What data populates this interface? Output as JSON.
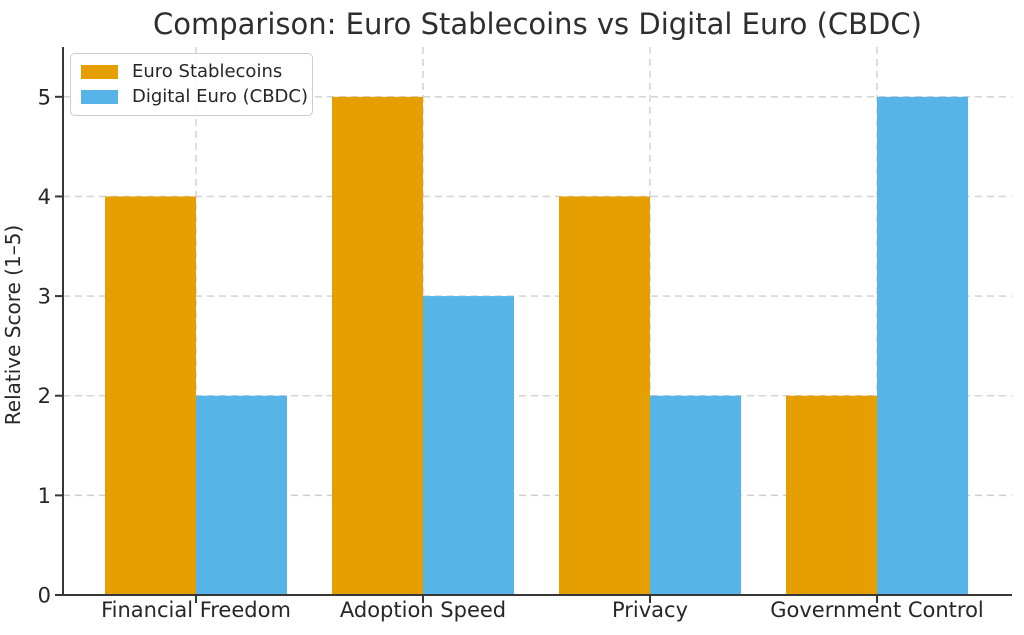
{
  "chart_data": {
    "type": "bar",
    "title": "Comparison: Euro Stablecoins vs Digital Euro (CBDC)",
    "xlabel": "",
    "ylabel": "Relative Score (1–5)",
    "categories": [
      "Financial Freedom",
      "Adoption Speed",
      "Privacy",
      "Government Control"
    ],
    "series": [
      {
        "name": "Euro Stablecoins",
        "color": "#E69F00",
        "values": [
          4,
          5,
          4,
          2
        ]
      },
      {
        "name": "Digital Euro (CBDC)",
        "color": "#56B4E9",
        "values": [
          2,
          3,
          2,
          5
        ]
      }
    ],
    "ylim": [
      0,
      5.5
    ],
    "yticks": [
      0,
      1,
      2,
      3,
      4,
      5
    ],
    "grid": "dashed light-gray gridlines, horizontal at each y tick and vertical at each category center",
    "legend_position": "upper left"
  },
  "style": {
    "background_color": "#ffffff",
    "grid_color": "#cfcfcf",
    "spine_color": "#373737",
    "text_color": "#262626",
    "title_color": "#2e2e2e"
  }
}
